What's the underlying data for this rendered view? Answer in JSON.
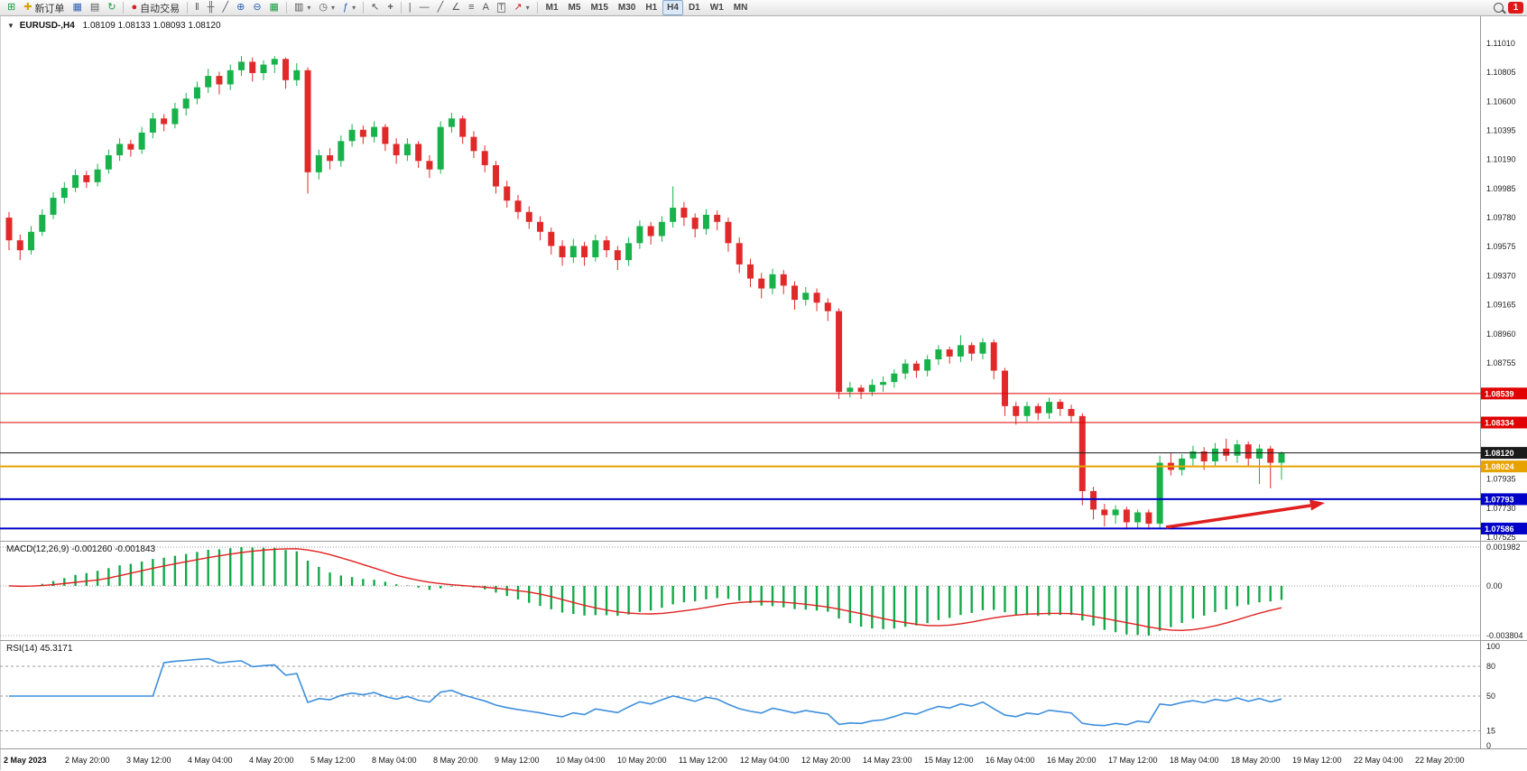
{
  "toolbar": {
    "new_order_label": "新订单",
    "auto_trading_label": "自动交易",
    "timeframes": [
      "M1",
      "M5",
      "M15",
      "M30",
      "H1",
      "H4",
      "D1",
      "W1",
      "MN"
    ],
    "active_timeframe": "H4",
    "notification_count": "1"
  },
  "chart": {
    "symbol_label": "EURUSD-,H4",
    "ohlc": "1.08109 1.08133 1.08093 1.08120",
    "macd_label": "MACD(12,26,9) -0.001260 -0.001843",
    "rsi_label": "RSI(14) 45.3171"
  },
  "colors": {
    "up": "#17b24a",
    "down": "#e02a2a",
    "macd_hist": "#12a949",
    "macd_signal": "#e02020",
    "rsi_line": "#3d8fdd",
    "arrow": "#e01f1f",
    "badge_current": "#1a1a1a",
    "line_red": "#e00000",
    "line_orange": "#e8a200",
    "line_blue": "#0000c8"
  },
  "chart_data": {
    "type": "candlestick",
    "symbol": "EURUSD",
    "timeframe": "H4",
    "current_bar": {
      "open": 1.08109,
      "high": 1.08133,
      "low": 1.08093,
      "close": 1.0812
    },
    "price_axis_ticks": [
      "1.11010",
      "1.10805",
      "1.10600",
      "1.10395",
      "1.10190",
      "1.09985",
      "1.09780",
      "1.09575",
      "1.09370",
      "1.09165",
      "1.08960",
      "1.08755",
      "1.07935",
      "1.07730",
      "1.07525"
    ],
    "ylim": [
      1.07525,
      1.1101
    ],
    "hlines": [
      {
        "price": 1.08539,
        "label": "1.08539",
        "color": "#e00000",
        "width": 1
      },
      {
        "price": 1.08334,
        "label": "1.08334",
        "color": "#e00000",
        "width": 1
      },
      {
        "price": 1.0812,
        "label": "1.08120",
        "color": "#1a1a1a",
        "width": 1
      },
      {
        "price": 1.08024,
        "label": "1.08024",
        "color": "#e8a200",
        "width": 2
      },
      {
        "price": 1.07793,
        "label": "1.07793",
        "color": "#0000c8",
        "width": 2
      },
      {
        "price": 1.07586,
        "label": "1.07586",
        "color": "#0000c8",
        "width": 2
      }
    ],
    "time_labels": [
      "2 May 2023",
      "2 May 20:00",
      "3 May 12:00",
      "4 May 04:00",
      "4 May 20:00",
      "5 May 12:00",
      "8 May 04:00",
      "8 May 20:00",
      "9 May 12:00",
      "10 May 04:00",
      "10 May 20:00",
      "11 May 12:00",
      "12 May 04:00",
      "12 May 20:00",
      "14 May 23:00",
      "15 May 12:00",
      "16 May 04:00",
      "16 May 20:00",
      "17 May 12:00",
      "18 May 04:00",
      "18 May 20:00",
      "19 May 12:00",
      "22 May 04:00",
      "22 May 20:00"
    ],
    "indicators": {
      "macd": {
        "fast": 12,
        "slow": 26,
        "signal": 9,
        "main_value": -0.00126,
        "signal_value": -0.001843,
        "axis_labels": [
          "0.001982",
          "0.00",
          "-0.003804"
        ]
      },
      "rsi": {
        "period": 14,
        "value": 45.3171,
        "axis_labels": [
          100,
          80,
          50,
          15,
          0
        ],
        "dashed_levels": [
          80,
          50,
          15
        ]
      }
    },
    "candles": [
      [
        1.0978,
        1.0982,
        1.0955,
        1.0962
      ],
      [
        1.0962,
        1.0966,
        1.0948,
        1.0955
      ],
      [
        1.0955,
        1.0972,
        1.0952,
        1.0968
      ],
      [
        1.0968,
        1.0984,
        1.0965,
        1.098
      ],
      [
        1.098,
        1.0996,
        1.0977,
        1.0992
      ],
      [
        1.0992,
        1.1003,
        1.0988,
        1.0999
      ],
      [
        1.0999,
        1.1012,
        1.0996,
        1.1008
      ],
      [
        1.1008,
        1.1011,
        1.0999,
        1.1003
      ],
      [
        1.1003,
        1.1016,
        1.1,
        1.1012
      ],
      [
        1.1012,
        1.1026,
        1.1009,
        1.1022
      ],
      [
        1.1022,
        1.1034,
        1.1018,
        1.103
      ],
      [
        1.103,
        1.1033,
        1.1021,
        1.1026
      ],
      [
        1.1026,
        1.1042,
        1.1023,
        1.1038
      ],
      [
        1.1038,
        1.1052,
        1.1034,
        1.1048
      ],
      [
        1.1048,
        1.1051,
        1.1039,
        1.1044
      ],
      [
        1.1044,
        1.1059,
        1.1041,
        1.1055
      ],
      [
        1.1055,
        1.1066,
        1.105,
        1.1062
      ],
      [
        1.1062,
        1.1074,
        1.1058,
        1.107
      ],
      [
        1.107,
        1.1083,
        1.1066,
        1.1078
      ],
      [
        1.1078,
        1.1081,
        1.1065,
        1.1072
      ],
      [
        1.1072,
        1.1086,
        1.1068,
        1.1082
      ],
      [
        1.1082,
        1.1092,
        1.1078,
        1.1088
      ],
      [
        1.1088,
        1.1091,
        1.1074,
        1.108
      ],
      [
        1.108,
        1.1089,
        1.1075,
        1.1086
      ],
      [
        1.1086,
        1.1092,
        1.108,
        1.109
      ],
      [
        1.109,
        1.1091,
        1.1069,
        1.1075
      ],
      [
        1.1075,
        1.1087,
        1.1071,
        1.1082
      ],
      [
        1.1082,
        1.1084,
        1.0995,
        1.101
      ],
      [
        1.101,
        1.1026,
        1.1005,
        1.1022
      ],
      [
        1.1022,
        1.1027,
        1.1012,
        1.1018
      ],
      [
        1.1018,
        1.1036,
        1.1014,
        1.1032
      ],
      [
        1.1032,
        1.1044,
        1.1028,
        1.104
      ],
      [
        1.104,
        1.1043,
        1.103,
        1.1035
      ],
      [
        1.1035,
        1.1046,
        1.1031,
        1.1042
      ],
      [
        1.1042,
        1.1044,
        1.1025,
        1.103
      ],
      [
        1.103,
        1.1034,
        1.1016,
        1.1022
      ],
      [
        1.1022,
        1.1034,
        1.1018,
        1.103
      ],
      [
        1.103,
        1.1032,
        1.1013,
        1.1018
      ],
      [
        1.1018,
        1.1022,
        1.1006,
        1.1012
      ],
      [
        1.1012,
        1.1046,
        1.1009,
        1.1042
      ],
      [
        1.1042,
        1.1052,
        1.1038,
        1.1048
      ],
      [
        1.1048,
        1.105,
        1.103,
        1.1035
      ],
      [
        1.1035,
        1.1039,
        1.102,
        1.1025
      ],
      [
        1.1025,
        1.1029,
        1.101,
        1.1015
      ],
      [
        1.1015,
        1.1018,
        1.0995,
        1.1
      ],
      [
        1.1,
        1.1004,
        1.0985,
        1.099
      ],
      [
        1.099,
        1.0994,
        1.0977,
        1.0982
      ],
      [
        1.0982,
        1.0986,
        1.097,
        1.0975
      ],
      [
        1.0975,
        1.0979,
        1.0962,
        1.0968
      ],
      [
        1.0968,
        1.0971,
        1.0952,
        1.0958
      ],
      [
        1.0958,
        1.0962,
        1.0944,
        1.095
      ],
      [
        1.095,
        1.0963,
        1.0946,
        1.0958
      ],
      [
        1.0958,
        1.0961,
        1.0944,
        1.095
      ],
      [
        1.095,
        1.0966,
        1.0947,
        1.0962
      ],
      [
        1.0962,
        1.0965,
        1.095,
        1.0955
      ],
      [
        1.0955,
        1.0958,
        1.0941,
        1.0948
      ],
      [
        1.0948,
        1.0964,
        1.0944,
        1.096
      ],
      [
        1.096,
        1.0976,
        1.0956,
        1.0972
      ],
      [
        1.0972,
        1.0975,
        1.0959,
        1.0965
      ],
      [
        1.0965,
        1.0979,
        1.0961,
        1.0975
      ],
      [
        1.0975,
        1.1,
        1.0971,
        1.0985
      ],
      [
        1.0985,
        1.0989,
        1.0972,
        1.0978
      ],
      [
        1.0978,
        1.0981,
        1.0964,
        1.097
      ],
      [
        1.097,
        1.0984,
        1.0966,
        1.098
      ],
      [
        1.098,
        1.0983,
        1.0969,
        1.0975
      ],
      [
        1.0975,
        1.0978,
        1.0954,
        1.096
      ],
      [
        1.096,
        1.0964,
        1.0939,
        1.0945
      ],
      [
        1.0945,
        1.0949,
        1.0929,
        1.0935
      ],
      [
        1.0935,
        1.0939,
        1.0921,
        1.0928
      ],
      [
        1.0928,
        1.0942,
        1.0924,
        1.0938
      ],
      [
        1.0938,
        1.0941,
        1.0924,
        1.093
      ],
      [
        1.093,
        1.0933,
        1.0913,
        1.092
      ],
      [
        1.092,
        1.0929,
        1.0916,
        1.0925
      ],
      [
        1.0925,
        1.0928,
        1.0912,
        1.0918
      ],
      [
        1.0918,
        1.0921,
        1.0905,
        1.0912
      ],
      [
        1.0912,
        1.0914,
        1.085,
        1.0855
      ],
      [
        1.0855,
        1.0862,
        1.0851,
        1.0858
      ],
      [
        1.0858,
        1.086,
        1.085,
        1.0855
      ],
      [
        1.0855,
        1.0864,
        1.0852,
        1.086
      ],
      [
        1.086,
        1.0866,
        1.0855,
        1.0862
      ],
      [
        1.0862,
        1.0871,
        1.0858,
        1.0868
      ],
      [
        1.0868,
        1.0878,
        1.0864,
        1.0875
      ],
      [
        1.0875,
        1.0877,
        1.0865,
        1.087
      ],
      [
        1.087,
        1.0881,
        1.0866,
        1.0878
      ],
      [
        1.0878,
        1.0888,
        1.0874,
        1.0885
      ],
      [
        1.0885,
        1.0887,
        1.0875,
        1.088
      ],
      [
        1.088,
        1.0895,
        1.0876,
        1.0888
      ],
      [
        1.0888,
        1.089,
        1.0877,
        1.0882
      ],
      [
        1.0882,
        1.0893,
        1.0878,
        1.089
      ],
      [
        1.089,
        1.0892,
        1.0864,
        1.087
      ],
      [
        1.087,
        1.0872,
        1.0838,
        1.0845
      ],
      [
        1.0845,
        1.0848,
        1.0832,
        1.0838
      ],
      [
        1.0838,
        1.0848,
        1.0834,
        1.0845
      ],
      [
        1.0845,
        1.0847,
        1.0835,
        1.084
      ],
      [
        1.084,
        1.0851,
        1.0836,
        1.0848
      ],
      [
        1.0848,
        1.085,
        1.0838,
        1.0843
      ],
      [
        1.0843,
        1.0846,
        1.0833,
        1.0838
      ],
      [
        1.0838,
        1.084,
        1.0775,
        1.0785
      ],
      [
        1.0785,
        1.0788,
        1.0765,
        1.0772
      ],
      [
        1.0772,
        1.0776,
        1.076,
        1.0768
      ],
      [
        1.0768,
        1.0775,
        1.0762,
        1.0772
      ],
      [
        1.0772,
        1.0774,
        1.0758,
        1.0763
      ],
      [
        1.0763,
        1.0772,
        1.0759,
        1.077
      ],
      [
        1.077,
        1.0772,
        1.0758,
        1.0762
      ],
      [
        1.0762,
        1.081,
        1.0759,
        1.0805
      ],
      [
        1.0805,
        1.0812,
        1.0796,
        1.08
      ],
      [
        1.08,
        1.0811,
        1.0796,
        1.0808
      ],
      [
        1.0808,
        1.0817,
        1.0803,
        1.0813
      ],
      [
        1.0813,
        1.0816,
        1.08,
        1.0806
      ],
      [
        1.0806,
        1.0819,
        1.0802,
        1.0815
      ],
      [
        1.0815,
        1.0822,
        1.0806,
        1.081
      ],
      [
        1.081,
        1.0821,
        1.0805,
        1.0818
      ],
      [
        1.0818,
        1.082,
        1.0802,
        1.0808
      ],
      [
        1.0808,
        1.0818,
        1.079,
        1.0815
      ],
      [
        1.0815,
        1.0817,
        1.0787,
        1.0805
      ],
      [
        1.0805,
        1.0813,
        1.0793,
        1.0812
      ]
    ],
    "arrow_annotation": {
      "type": "arrow",
      "points_to_price": 1.07793,
      "color": "#e01f1f"
    }
  }
}
